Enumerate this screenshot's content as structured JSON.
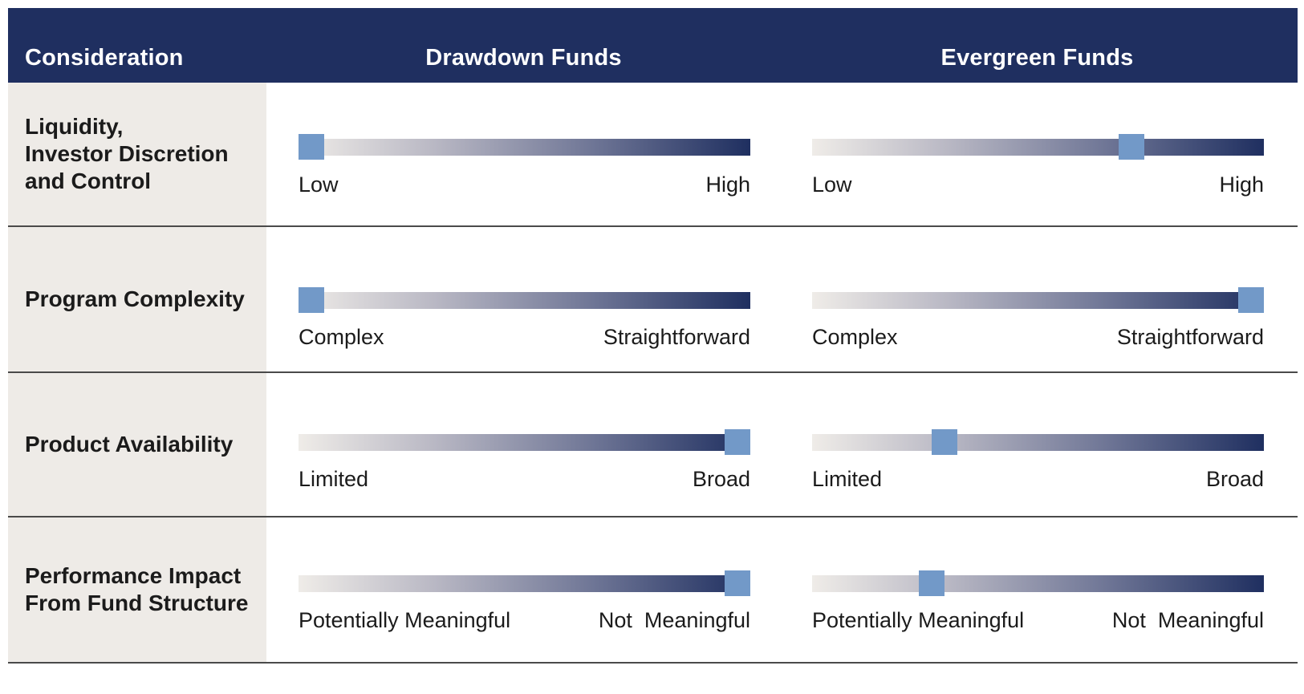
{
  "header": {
    "consideration": "Consideration",
    "drawdown": "Drawdown Funds",
    "evergreen": "Evergreen Funds"
  },
  "rows": [
    {
      "label": "Liquidity,\nInvestor Discretion\nand Control",
      "low_label": "Low",
      "high_label": "High",
      "drawdown_level": 0.0,
      "evergreen_level": 0.72
    },
    {
      "label": "Program Complexity",
      "low_label": "Complex",
      "high_label": "Straightforward",
      "drawdown_level": 0.0,
      "evergreen_level": 1.0
    },
    {
      "label": "Product Availability",
      "low_label": "Limited",
      "high_label": "Broad",
      "drawdown_level": 1.0,
      "evergreen_level": 0.28
    },
    {
      "label": "Performance Impact\nFrom Fund Structure",
      "low_label": "Potentially Meaningful",
      "high_label": "Not  Meaningful",
      "drawdown_level": 1.0,
      "evergreen_level": 0.25
    }
  ],
  "colors": {
    "header_bg": "#1f2f60",
    "label_bg": "#eeebe7",
    "thumb": "#7299c8",
    "track_start": "#efece8",
    "track_end": "#1f2f60"
  }
}
